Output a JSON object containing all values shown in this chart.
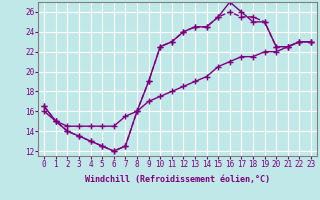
{
  "xlabel": "Windchill (Refroidissement éolien,°C)",
  "bg_color": "#c0e8e8",
  "grid_color": "#ffffff",
  "line_color": "#800080",
  "xlim": [
    -0.5,
    23.5
  ],
  "ylim": [
    11.5,
    27.0
  ],
  "yticks": [
    12,
    14,
    16,
    18,
    20,
    22,
    24,
    26
  ],
  "xticks": [
    0,
    1,
    2,
    3,
    4,
    5,
    6,
    7,
    8,
    9,
    10,
    11,
    12,
    13,
    14,
    15,
    16,
    17,
    18,
    19,
    20,
    21,
    22,
    23
  ],
  "line1_x": [
    0,
    1,
    2,
    3,
    4,
    5,
    6,
    7,
    8,
    9,
    10,
    11,
    12,
    13,
    14,
    15,
    16,
    17,
    18,
    19,
    20,
    21,
    22,
    23
  ],
  "line1_y": [
    16.5,
    15.0,
    14.0,
    13.5,
    13.0,
    12.5,
    12.0,
    12.5,
    16.0,
    19.0,
    22.5,
    23.0,
    24.0,
    24.5,
    24.5,
    25.5,
    27.0,
    26.0,
    25.0,
    25.0,
    22.5,
    22.5,
    23.0,
    23.0
  ],
  "line1_style": "-",
  "line2_x": [
    0,
    1,
    2,
    3,
    4,
    5,
    6,
    7,
    8,
    9,
    10,
    11,
    12,
    13,
    14,
    15,
    16,
    17,
    18,
    19,
    20,
    21,
    22,
    23
  ],
  "line2_y": [
    16.5,
    15.0,
    14.0,
    13.5,
    13.0,
    12.5,
    12.0,
    12.5,
    16.0,
    19.0,
    22.5,
    23.0,
    24.0,
    24.5,
    24.5,
    25.5,
    26.0,
    25.5,
    25.5,
    25.0,
    22.5,
    22.5,
    23.0,
    23.0
  ],
  "line2_style": "--",
  "line3_x": [
    0,
    1,
    2,
    3,
    4,
    5,
    6,
    7,
    8,
    9,
    10,
    11,
    12,
    13,
    14,
    15,
    16,
    17,
    18,
    19,
    20,
    21,
    22,
    23
  ],
  "line3_y": [
    16.0,
    15.0,
    14.5,
    14.5,
    14.5,
    14.5,
    14.5,
    15.5,
    16.0,
    17.0,
    17.5,
    18.0,
    18.5,
    19.0,
    19.5,
    20.5,
    21.0,
    21.5,
    21.5,
    22.0,
    22.0,
    22.5,
    23.0,
    23.0
  ],
  "line3_style": "-",
  "marker": "+",
  "markersize": 4,
  "linewidth": 1.0,
  "xlabel_fontsize": 6,
  "tick_fontsize": 5.5
}
